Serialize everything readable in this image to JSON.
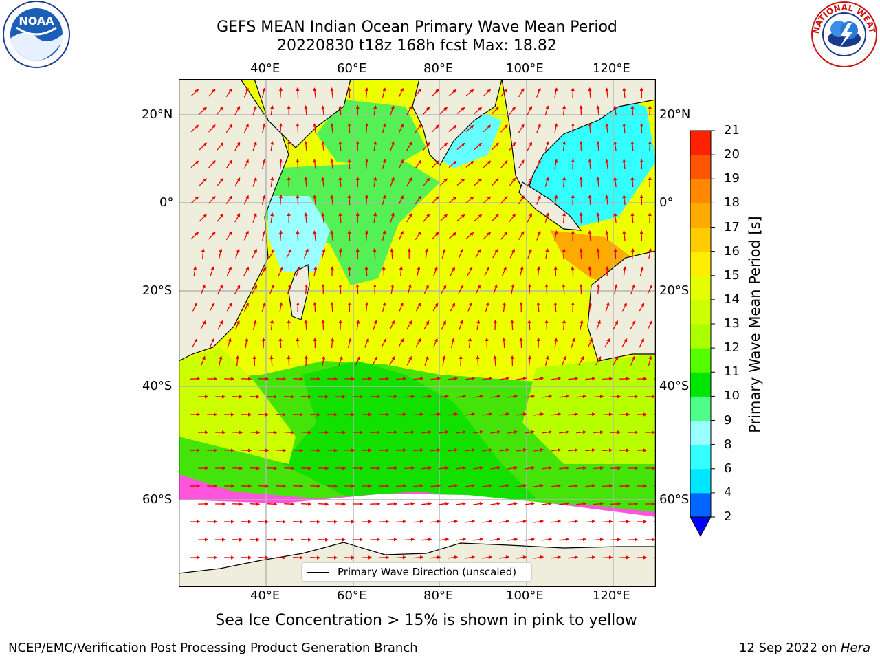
{
  "title": {
    "line1": "GEFS MEAN Indian Ocean Primary Wave Mean Period",
    "line2": "20220830 t18z 168h fcst   Max: 18.82"
  },
  "map": {
    "lon_ticks": [
      "40°E",
      "60°E",
      "80°E",
      "100°E",
      "120°E"
    ],
    "lat_ticks": [
      "20°N",
      "0°",
      "20°S",
      "40°S",
      "60°S"
    ],
    "legend_label": "Primary Wave Direction (unscaled)",
    "ocean_color": "#f2f200",
    "land_color": "#efeddc"
  },
  "colorbar": {
    "label": "Primary Wave Mean Period [s]",
    "ticks": [
      "2",
      "4",
      "6",
      "8",
      "9",
      "10",
      "11",
      "12",
      "13",
      "14",
      "15",
      "16",
      "17",
      "18",
      "19",
      "20",
      "21"
    ],
    "colors": [
      "#0066ff",
      "#00e6ff",
      "#33ffff",
      "#99ffff",
      "#4dff88",
      "#00e600",
      "#55ff00",
      "#aaff00",
      "#ccff00",
      "#e6ff00",
      "#ffee00",
      "#ffcc00",
      "#ffaa00",
      "#ff8800",
      "#ff5500",
      "#ff2200"
    ],
    "extend_color": "#0000ff"
  },
  "caption": "Sea Ice Concentration > 15% is shown in pink to yellow",
  "footer": {
    "left": "NCEP/EMC/Verification Post Processing Product Generation Branch",
    "right_prefix": "12 Sep 2022 on ",
    "right_italic": "Hera"
  },
  "logos": {
    "noaa_text": "NOAA",
    "nws_text": "NATIONAL WEATHER SERVICE"
  }
}
